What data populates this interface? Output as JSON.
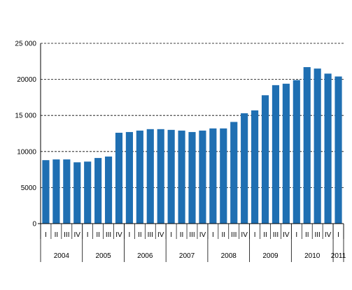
{
  "chart_data": {
    "type": "bar",
    "categories": [
      "I",
      "II",
      "III",
      "IV",
      "I",
      "II",
      "III",
      "IV",
      "I",
      "II",
      "III",
      "IV",
      "I",
      "II",
      "III",
      "IV",
      "I",
      "II",
      "III",
      "IV",
      "I",
      "II",
      "III",
      "IV",
      "I",
      "II",
      "III",
      "IV",
      "I"
    ],
    "years": [
      "2004",
      "2005",
      "2006",
      "2007",
      "2008",
      "2009",
      "2010",
      "2011"
    ],
    "values": [
      8800,
      8900,
      8900,
      8500,
      8600,
      9100,
      9300,
      12600,
      12700,
      12900,
      13100,
      13100,
      13000,
      12900,
      12700,
      12900,
      13200,
      13200,
      14100,
      15300,
      15700,
      17800,
      19200,
      19400,
      19900,
      21700,
      21500,
      20800,
      20400
    ],
    "ylim": [
      0,
      25000
    ],
    "yticks": [
      0,
      5000,
      10000,
      15000,
      20000,
      25000
    ],
    "ytick_labels": [
      "0",
      "5000",
      "10000",
      "15 000",
      "20000",
      "25 000"
    ],
    "grid": "dashed horizontal",
    "colors": {
      "bar": "#1f6fb2",
      "grid": "#000000",
      "axis": "#000000"
    }
  }
}
